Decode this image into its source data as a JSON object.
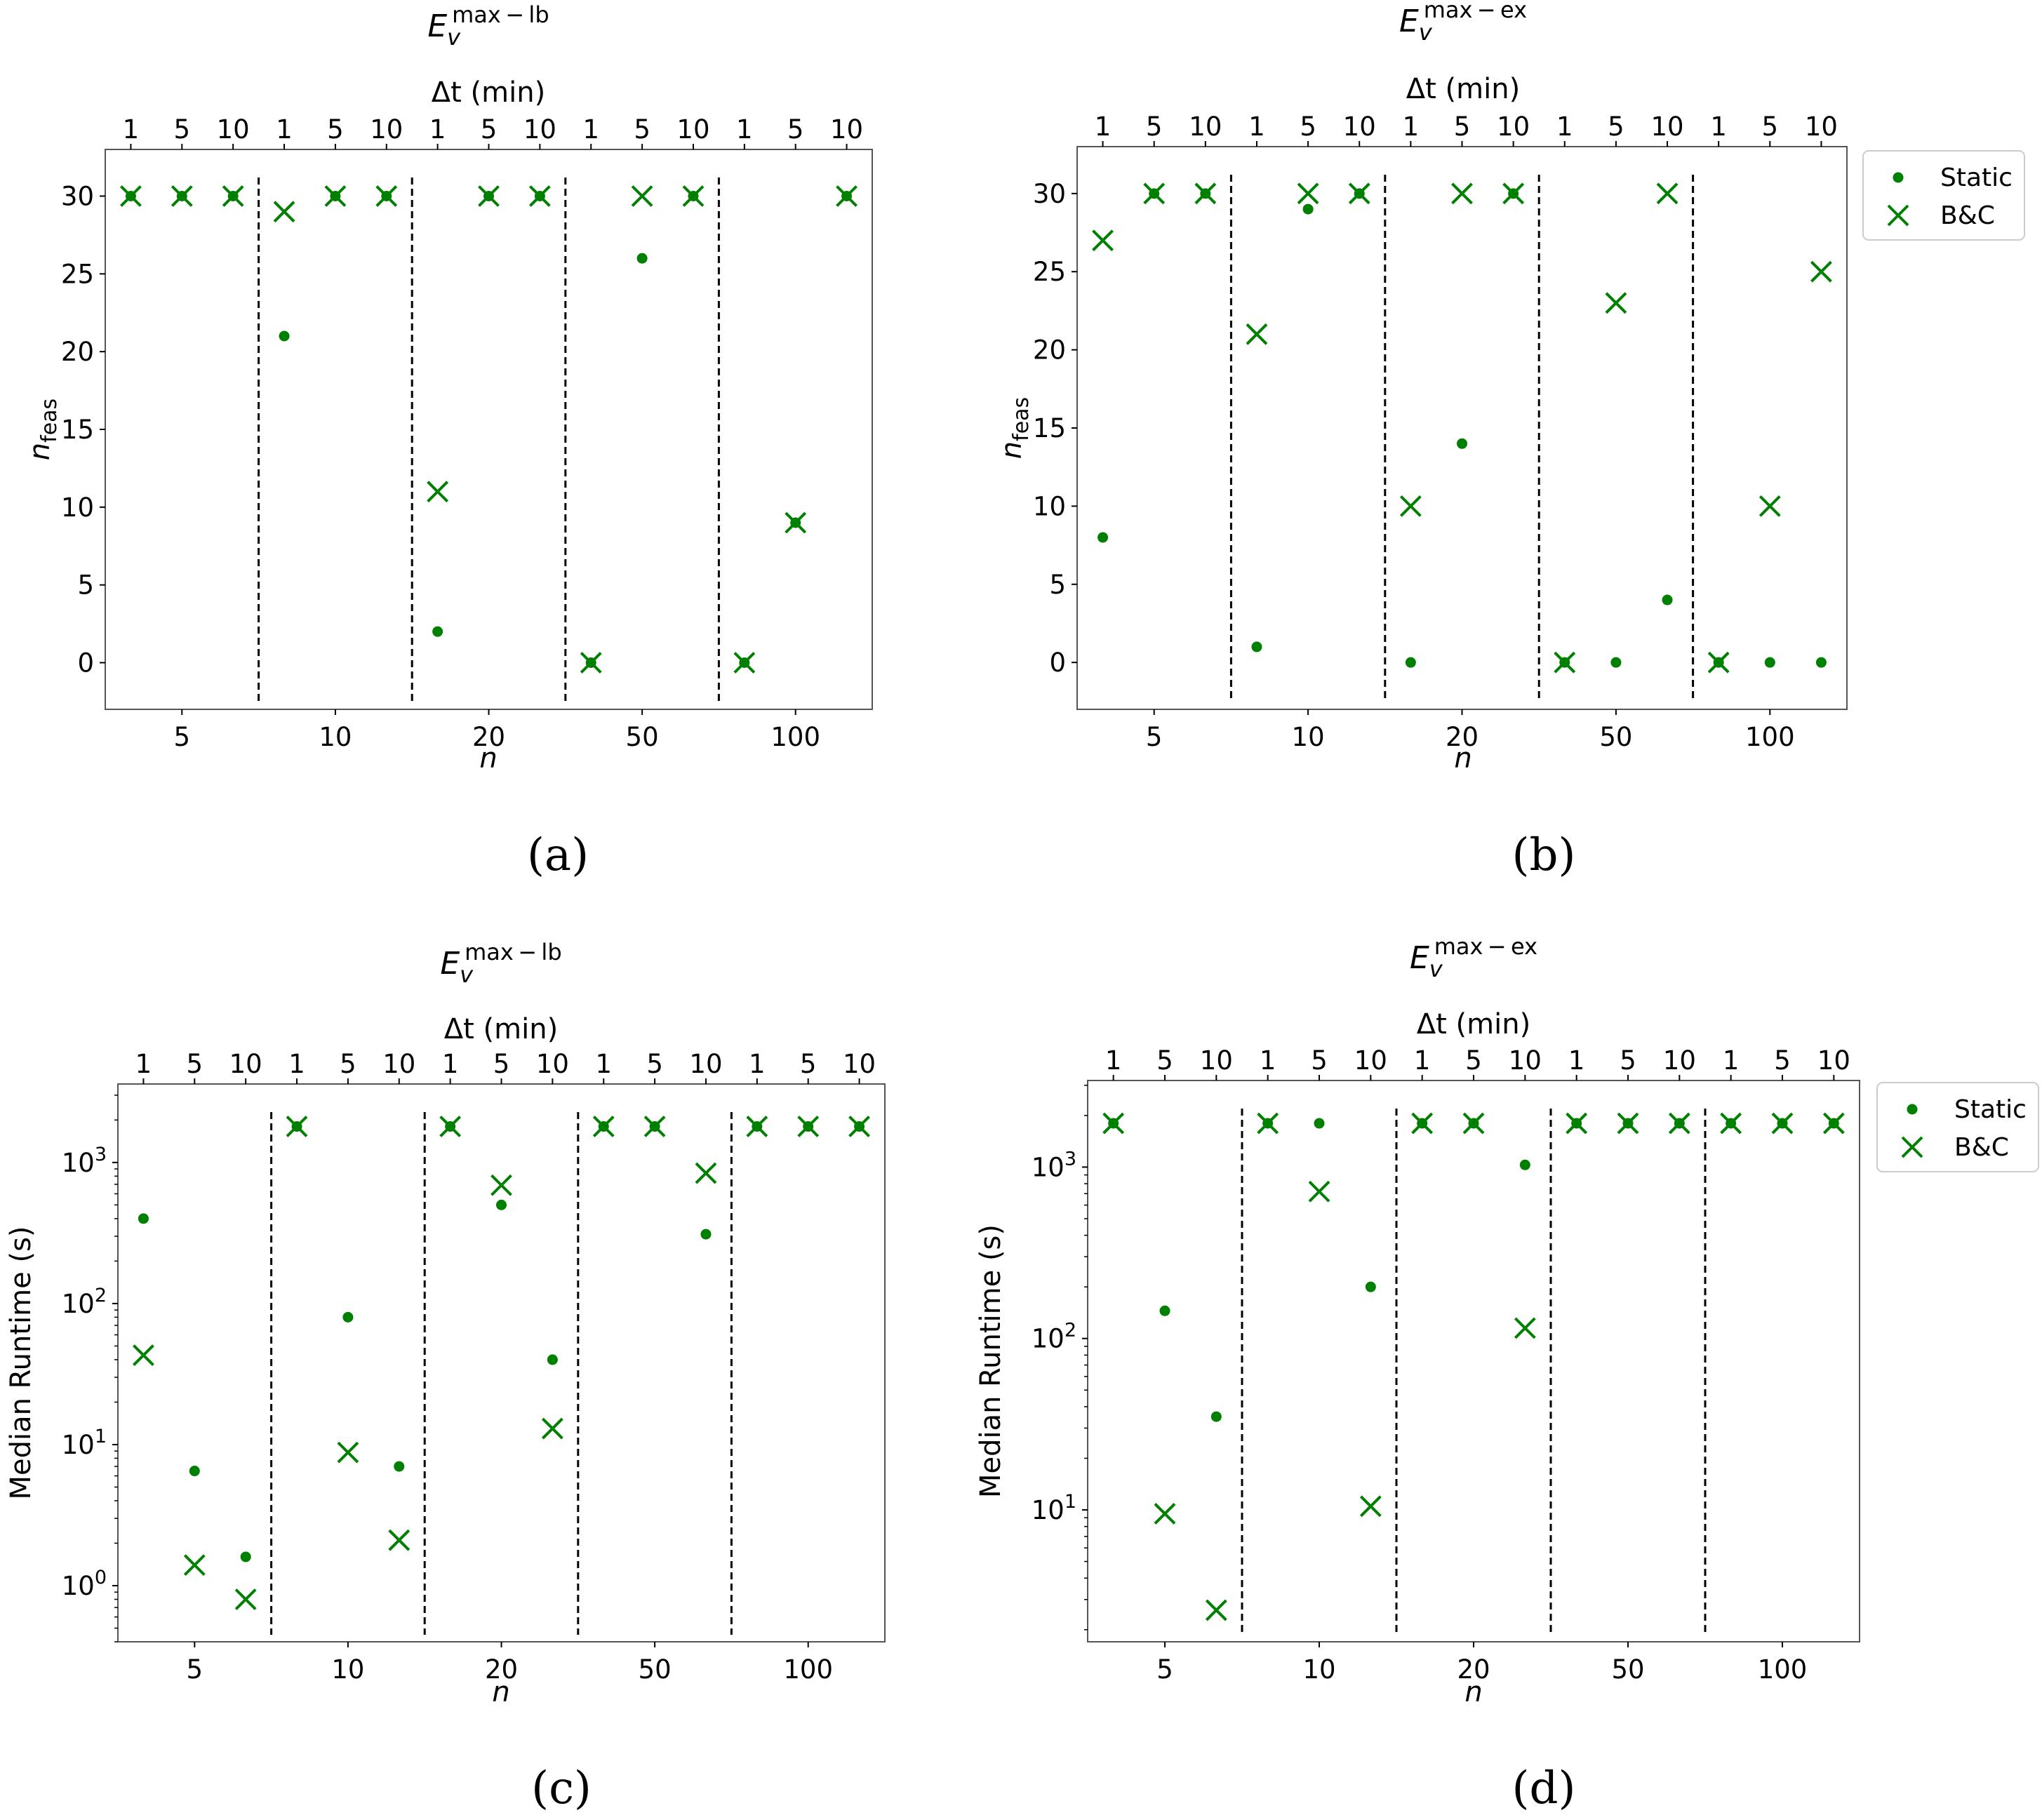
{
  "colors": {
    "marker": "#008000",
    "frame": "#555555",
    "divider": "#000000"
  },
  "legend": {
    "static_label": "Static",
    "bc_label": "B&C",
    "placement": "outside-right"
  },
  "chart_data": [
    {
      "id": "a",
      "panel_label": "(a)",
      "type": "scatter",
      "yscale": "linear",
      "title_base": "E",
      "title_sub": "v",
      "title_sup": "max − lb",
      "top_axis_label": "Δt (min)",
      "xlabel": "n",
      "ylabel": "n",
      "ylabel_sub": "feas",
      "groups": [
        "5",
        "10",
        "20",
        "50",
        "100"
      ],
      "dt_ticks": [
        "1",
        "5",
        "10"
      ],
      "yticks": [
        0,
        5,
        10,
        15,
        20,
        25,
        30
      ],
      "ytick_labels": [
        "0",
        "5",
        "10",
        "15",
        "20",
        "25",
        "30"
      ],
      "ylim": [
        -3.0,
        33.0
      ],
      "show_legend": false,
      "series": [
        {
          "name": "Static",
          "values": [
            30,
            30,
            30,
            21,
            30,
            30,
            2,
            30,
            30,
            0,
            26,
            30,
            0,
            9,
            30
          ]
        },
        {
          "name": "B&C",
          "values": [
            30,
            30,
            30,
            29,
            30,
            30,
            11,
            30,
            30,
            0,
            30,
            30,
            0,
            9,
            30
          ]
        }
      ]
    },
    {
      "id": "b",
      "panel_label": "(b)",
      "type": "scatter",
      "yscale": "linear",
      "title_base": "E",
      "title_sub": "v",
      "title_sup": "max − ex",
      "top_axis_label": "Δt (min)",
      "xlabel": "n",
      "ylabel": "n",
      "ylabel_sub": "feas",
      "groups": [
        "5",
        "10",
        "20",
        "50",
        "100"
      ],
      "dt_ticks": [
        "1",
        "5",
        "10"
      ],
      "yticks": [
        0,
        5,
        10,
        15,
        20,
        25,
        30
      ],
      "ytick_labels": [
        "0",
        "5",
        "10",
        "15",
        "20",
        "25",
        "30"
      ],
      "ylim": [
        -3.0,
        33.0
      ],
      "show_legend": true,
      "series": [
        {
          "name": "Static",
          "values": [
            8,
            30,
            30,
            1,
            29,
            30,
            0,
            14,
            30,
            0,
            0,
            4,
            0,
            0,
            0
          ]
        },
        {
          "name": "B&C",
          "values": [
            27,
            30,
            30,
            21,
            30,
            30,
            10,
            30,
            30,
            0,
            23,
            30,
            0,
            10,
            25
          ]
        }
      ]
    },
    {
      "id": "c",
      "panel_label": "(c)",
      "type": "scatter",
      "yscale": "log",
      "title_base": "E",
      "title_sub": "v",
      "title_sup": "max − lb",
      "top_axis_label": "Δt (min)",
      "xlabel": "n",
      "ylabel": "Median Runtime (s)",
      "ylabel_sub": "",
      "groups": [
        "5",
        "10",
        "20",
        "50",
        "100"
      ],
      "dt_ticks": [
        "1",
        "5",
        "10"
      ],
      "yticks": [
        1,
        10,
        100,
        1000
      ],
      "ytick_base": "10",
      "ytick_exps": [
        "0",
        "1",
        "2",
        "3"
      ],
      "ylim": [
        0.4,
        3600
      ],
      "show_legend": false,
      "series": [
        {
          "name": "Static",
          "values": [
            400,
            6.5,
            1.6,
            1800,
            80,
            7,
            1800,
            500,
            40,
            1800,
            1800,
            310,
            1800,
            1800,
            1800
          ]
        },
        {
          "name": "B&C",
          "values": [
            43,
            1.4,
            0.8,
            1800,
            8.8,
            2.1,
            1800,
            690,
            13,
            1800,
            1800,
            840,
            1800,
            1800,
            1800
          ]
        }
      ]
    },
    {
      "id": "d",
      "panel_label": "(d)",
      "type": "scatter",
      "yscale": "log",
      "title_base": "E",
      "title_sub": "v",
      "title_sup": "max − ex",
      "top_axis_label": "Δt (min)",
      "xlabel": "n",
      "ylabel": "Median Runtime (s)",
      "ylabel_sub": "",
      "groups": [
        "5",
        "10",
        "20",
        "50",
        "100"
      ],
      "dt_ticks": [
        "1",
        "5",
        "10"
      ],
      "yticks": [
        10,
        100,
        1000
      ],
      "ytick_base": "10",
      "ytick_exps": [
        "1",
        "2",
        "3"
      ],
      "ylim": [
        1.7,
        3200
      ],
      "show_legend": true,
      "series": [
        {
          "name": "Static",
          "values": [
            1800,
            145,
            35,
            1800,
            1800,
            200,
            1800,
            1800,
            1030,
            1800,
            1800,
            1800,
            1800,
            1800,
            1800
          ]
        },
        {
          "name": "B&C",
          "values": [
            1800,
            9.5,
            2.6,
            1800,
            720,
            10.5,
            1800,
            1800,
            115,
            1800,
            1800,
            1800,
            1800,
            1800,
            1800
          ]
        }
      ]
    }
  ]
}
